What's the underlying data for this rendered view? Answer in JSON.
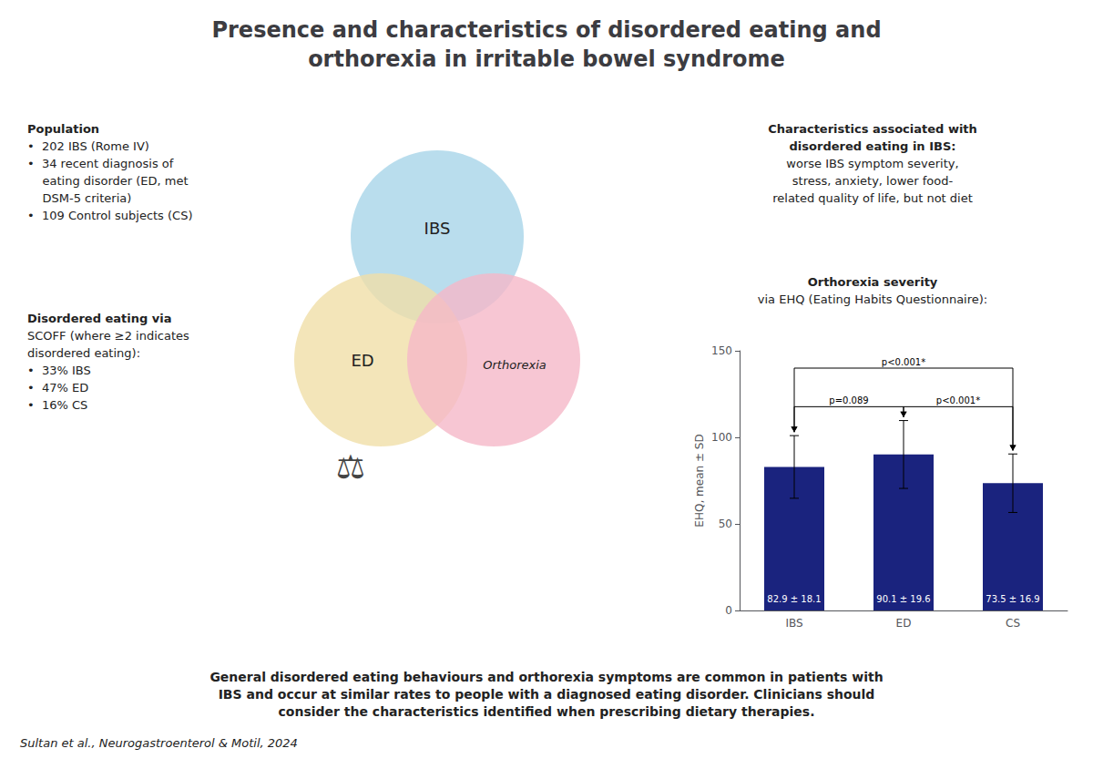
{
  "chart_data": {
    "type": "bar",
    "title": "Presence and characteristics of disordered eating and\northorexia in irritable bowel syndrome",
    "subtitle": "Orthorexia severity\nvia EHQ (Eating Habits Questionnaire):",
    "categories": [
      "IBS",
      "ED",
      "CS"
    ],
    "values": [
      82.9,
      90.1,
      73.5
    ],
    "errors": [
      18.1,
      19.6,
      16.9
    ],
    "value_labels": [
      "82.9 ± 18.1",
      "90.1 ± 19.6",
      "73.5 ± 16.9"
    ],
    "data_labels": true,
    "color": "#1a237e",
    "ylim": [
      0,
      150
    ],
    "yticks": [
      0,
      50,
      100,
      150
    ],
    "ylabel": "EHQ, mean ± SD",
    "grid": false,
    "annotations": [
      {
        "text": "p=0.089",
        "between": [
          "IBS",
          "ED"
        ]
      },
      {
        "text": "p<0.001*",
        "between": [
          "ED",
          "CS"
        ]
      },
      {
        "text": "p<0.001*",
        "between": [
          "IBS",
          "CS"
        ]
      },
      {
        "text": "Population\n•  202 IBS (Rome IV)\n•  34 recent diagnosis of\n    eating disorder (ED, met\n    DSM-5 criteria)\n•  109 Control subjects (CS)"
      },
      {
        "text": "Disordered eating via\nSCOFF (where ≥2 indicates\ndisordered eating):\n•  33% IBS\n•  47% ED\n•  16% CS"
      },
      {
        "text": "Characteristics associated with\ndisordered eating in IBS:\nworse IBS symptom severity,\nstress, anxiety, lower food-\nrelated quality of life, but not diet"
      },
      {
        "text": "IBS",
        "color": "#a8d4e8"
      },
      {
        "text": "ED",
        "color": "#f0dfa8"
      },
      {
        "text": "Orthorexia",
        "color": "#f5b8c8"
      },
      {
        "text": "⚖"
      },
      {
        "text": "General disordered eating behaviours and orthorexia symptoms are common in patients with\nIBS and occur at similar rates to people with a diagnosed eating disorder. Clinicians should\nconsider the characteristics identified when prescribing dietary therapies."
      },
      {
        "text": "Sultan et al., Neurogastroenterol & Motil, 2024"
      }
    ]
  }
}
